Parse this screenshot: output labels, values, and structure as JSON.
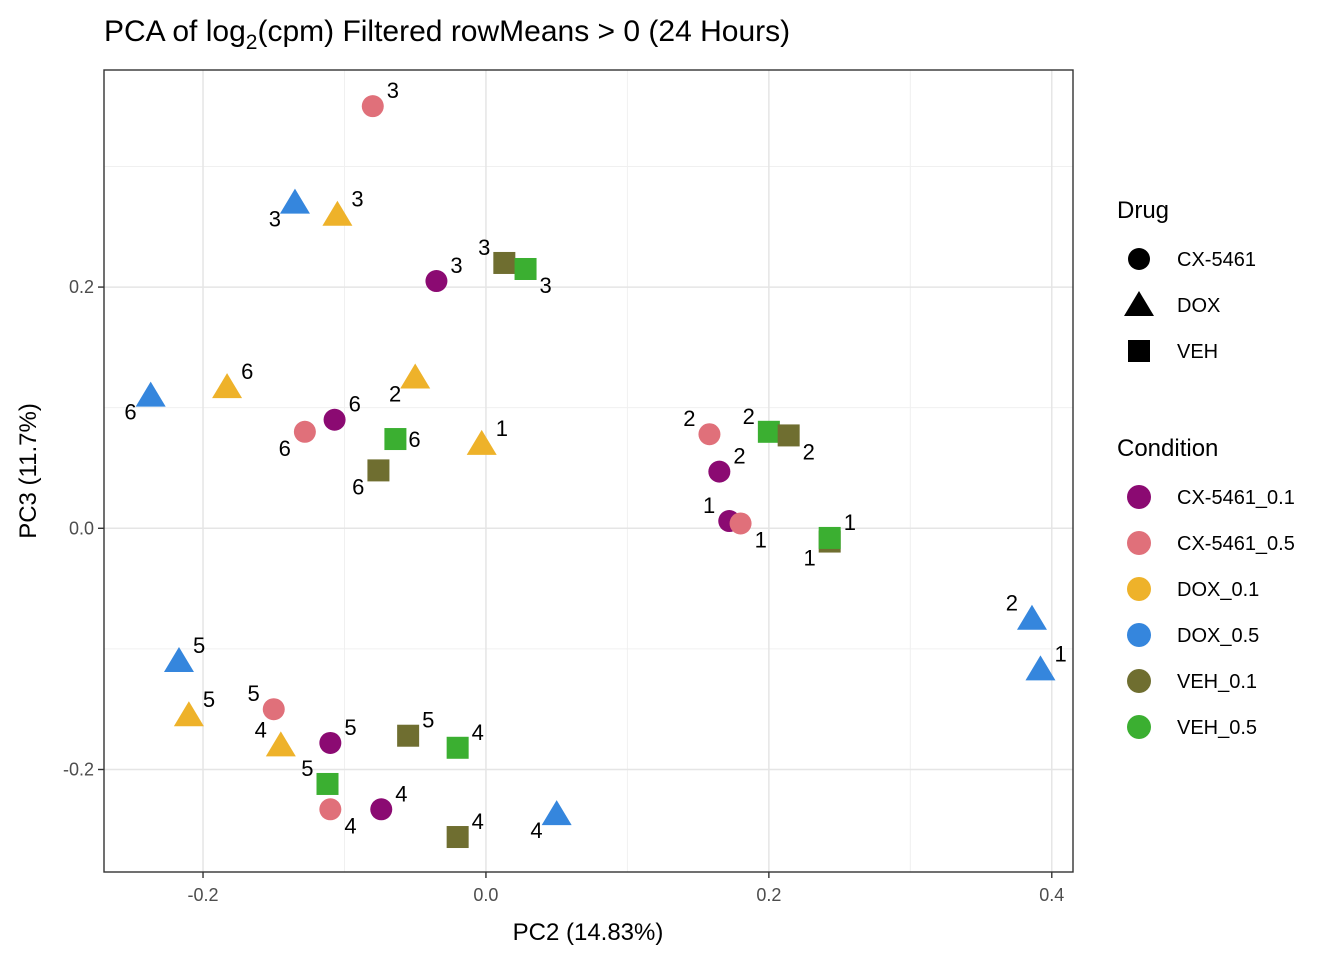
{
  "chart_data": {
    "type": "scatter",
    "title": "PCA of log",
    "title_subscript": "2",
    "title_rest": "(cpm) Filtered rowMeans > 0 (24 Hours)",
    "xlabel": "PC2 (14.83%)",
    "ylabel": "PC3 (11.7%)",
    "xlim": [
      -0.27,
      0.415
    ],
    "ylim": [
      -0.285,
      0.38
    ],
    "xticks": [
      -0.2,
      0.0,
      0.2,
      0.4
    ],
    "xtick_labels": [
      "-0.2",
      "0.0",
      "0.2",
      "0.4"
    ],
    "yticks": [
      -0.2,
      0.0,
      0.2
    ],
    "ytick_labels": [
      "-0.2",
      "0.0",
      "0.2"
    ],
    "grid": true,
    "legend_placement": "right",
    "legend_drug": {
      "title": "Drug",
      "entries": [
        {
          "label": "CX-5461",
          "shape": "circle"
        },
        {
          "label": "DOX",
          "shape": "triangle"
        },
        {
          "label": "VEH",
          "shape": "square"
        }
      ]
    },
    "legend_condition": {
      "title": "Condition",
      "entries": [
        {
          "label": "CX-5461_0.1",
          "color": "#8B0A72"
        },
        {
          "label": "CX-5461_0.5",
          "color": "#E0707A"
        },
        {
          "label": "DOX_0.1",
          "color": "#EEB22A"
        },
        {
          "label": "DOX_0.5",
          "color": "#3586DD"
        },
        {
          "label": "VEH_0.1",
          "color": "#6F6E30"
        },
        {
          "label": "VEH_0.5",
          "color": "#3BAF31"
        }
      ]
    },
    "points": [
      {
        "x": -0.08,
        "y": 0.35,
        "cond": "CX-5461_0.5",
        "drug": "CX-5461",
        "label": "3",
        "lpos": "ne"
      },
      {
        "x": -0.135,
        "y": 0.27,
        "cond": "DOX_0.5",
        "drug": "DOX",
        "label": "3",
        "lpos": "sw"
      },
      {
        "x": -0.105,
        "y": 0.26,
        "cond": "DOX_0.1",
        "drug": "DOX",
        "label": "3",
        "lpos": "ne"
      },
      {
        "x": -0.035,
        "y": 0.205,
        "cond": "CX-5461_0.1",
        "drug": "CX-5461",
        "label": "3",
        "lpos": "ne"
      },
      {
        "x": 0.013,
        "y": 0.22,
        "cond": "VEH_0.1",
        "drug": "VEH",
        "label": "3",
        "lpos": "nw"
      },
      {
        "x": 0.028,
        "y": 0.215,
        "cond": "VEH_0.5",
        "drug": "VEH",
        "label": "3",
        "lpos": "se"
      },
      {
        "x": -0.237,
        "y": 0.11,
        "cond": "DOX_0.5",
        "drug": "DOX",
        "label": "6",
        "lpos": "sw"
      },
      {
        "x": -0.183,
        "y": 0.117,
        "cond": "DOX_0.1",
        "drug": "DOX",
        "label": "6",
        "lpos": "ne"
      },
      {
        "x": -0.128,
        "y": 0.08,
        "cond": "CX-5461_0.5",
        "drug": "CX-5461",
        "label": "6",
        "lpos": "sw"
      },
      {
        "x": -0.107,
        "y": 0.09,
        "cond": "CX-5461_0.1",
        "drug": "CX-5461",
        "label": "6",
        "lpos": "ne"
      },
      {
        "x": -0.05,
        "y": 0.125,
        "cond": "DOX_0.1",
        "drug": "DOX",
        "label": "2",
        "lpos": "sw"
      },
      {
        "x": -0.064,
        "y": 0.074,
        "cond": "VEH_0.5",
        "drug": "VEH",
        "label": "6",
        "lpos": "e"
      },
      {
        "x": -0.076,
        "y": 0.048,
        "cond": "VEH_0.1",
        "drug": "VEH",
        "label": "6",
        "lpos": "sw"
      },
      {
        "x": -0.003,
        "y": 0.07,
        "cond": "DOX_0.1",
        "drug": "DOX",
        "label": "1",
        "lpos": "ne"
      },
      {
        "x": 0.158,
        "y": 0.078,
        "cond": "CX-5461_0.5",
        "drug": "CX-5461",
        "label": "2",
        "lpos": "nw"
      },
      {
        "x": 0.165,
        "y": 0.047,
        "cond": "CX-5461_0.1",
        "drug": "CX-5461",
        "label": "2",
        "lpos": "ne"
      },
      {
        "x": 0.2,
        "y": 0.08,
        "cond": "VEH_0.5",
        "drug": "VEH",
        "label": "2",
        "lpos": "nw"
      },
      {
        "x": 0.214,
        "y": 0.077,
        "cond": "VEH_0.1",
        "drug": "VEH",
        "label": "2",
        "lpos": "se"
      },
      {
        "x": 0.172,
        "y": 0.006,
        "cond": "CX-5461_0.1",
        "drug": "CX-5461",
        "label": "1",
        "lpos": "nw"
      },
      {
        "x": 0.18,
        "y": 0.004,
        "cond": "CX-5461_0.5",
        "drug": "CX-5461",
        "label": "1",
        "lpos": "se"
      },
      {
        "x": 0.243,
        "y": -0.011,
        "cond": "VEH_0.1",
        "drug": "VEH",
        "label": "1",
        "lpos": "sw"
      },
      {
        "x": 0.243,
        "y": -0.008,
        "cond": "VEH_0.5",
        "drug": "VEH",
        "label": "1",
        "lpos": "ne"
      },
      {
        "x": 0.386,
        "y": -0.075,
        "cond": "DOX_0.5",
        "drug": "DOX",
        "label": "2",
        "lpos": "nw"
      },
      {
        "x": 0.392,
        "y": -0.117,
        "cond": "DOX_0.5",
        "drug": "DOX",
        "label": "1",
        "lpos": "ne"
      },
      {
        "x": -0.217,
        "y": -0.11,
        "cond": "DOX_0.5",
        "drug": "DOX",
        "label": "5",
        "lpos": "ne"
      },
      {
        "x": -0.21,
        "y": -0.155,
        "cond": "DOX_0.1",
        "drug": "DOX",
        "label": "5",
        "lpos": "ne"
      },
      {
        "x": -0.15,
        "y": -0.15,
        "cond": "CX-5461_0.5",
        "drug": "CX-5461",
        "label": "5",
        "lpos": "nw"
      },
      {
        "x": -0.145,
        "y": -0.18,
        "cond": "DOX_0.1",
        "drug": "DOX",
        "label": "4",
        "lpos": "nw"
      },
      {
        "x": -0.11,
        "y": -0.178,
        "cond": "CX-5461_0.1",
        "drug": "CX-5461",
        "label": "5",
        "lpos": "ne"
      },
      {
        "x": -0.112,
        "y": -0.212,
        "cond": "VEH_0.5",
        "drug": "VEH",
        "label": "5",
        "lpos": "nw"
      },
      {
        "x": -0.11,
        "y": -0.233,
        "cond": "CX-5461_0.5",
        "drug": "CX-5461",
        "label": "4",
        "lpos": "se"
      },
      {
        "x": -0.074,
        "y": -0.233,
        "cond": "CX-5461_0.1",
        "drug": "CX-5461",
        "label": "4",
        "lpos": "ne"
      },
      {
        "x": -0.055,
        "y": -0.172,
        "cond": "VEH_0.1",
        "drug": "VEH",
        "label": "5",
        "lpos": "ne"
      },
      {
        "x": -0.02,
        "y": -0.182,
        "cond": "VEH_0.5",
        "drug": "VEH",
        "label": "4",
        "lpos": "ne"
      },
      {
        "x": -0.02,
        "y": -0.256,
        "cond": "VEH_0.1",
        "drug": "VEH",
        "label": "4",
        "lpos": "ne"
      },
      {
        "x": 0.05,
        "y": -0.237,
        "cond": "DOX_0.5",
        "drug": "DOX",
        "label": "4",
        "lpos": "sw"
      }
    ]
  }
}
